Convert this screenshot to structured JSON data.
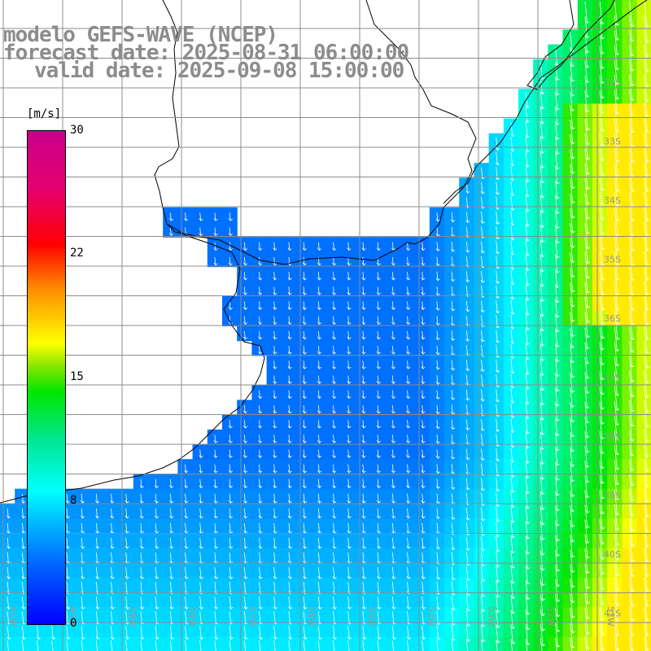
{
  "header": {
    "line1": "modelo GEFS-WAVE (NCEP)",
    "line2": "forecast date: 2025-08-31 06:00:00",
    "line3": "valid date: 2025-09-08 15:00:00"
  },
  "colorbar": {
    "unit": "[m/s]",
    "ticks": [
      "30",
      "22",
      "15",
      "8",
      "0"
    ],
    "stops": [
      {
        "v": 0,
        "c": "#0000ff"
      },
      {
        "v": 8,
        "c": "#00ffff"
      },
      {
        "v": 14,
        "c": "#00e600"
      },
      {
        "v": 17,
        "c": "#ffff00"
      },
      {
        "v": 23,
        "c": "#ff0000"
      },
      {
        "v": 30,
        "c": "#c8008c"
      }
    ]
  },
  "lat_labels": [
    "32S",
    "33S",
    "34S",
    "35S",
    "36S",
    "37S",
    "38S",
    "39S",
    "40S",
    "41S"
  ],
  "lon_labels": [
    "61W",
    "60W",
    "59W",
    "58W",
    "57W",
    "56W",
    "55W",
    "54W",
    "53W",
    "52W",
    "51W"
  ],
  "colors": {
    "land": "#ffffff",
    "coast": "#000000",
    "grid": "#8c8c8c",
    "arrow": "#ffffff",
    "header_text": "#8c8c8c"
  }
}
